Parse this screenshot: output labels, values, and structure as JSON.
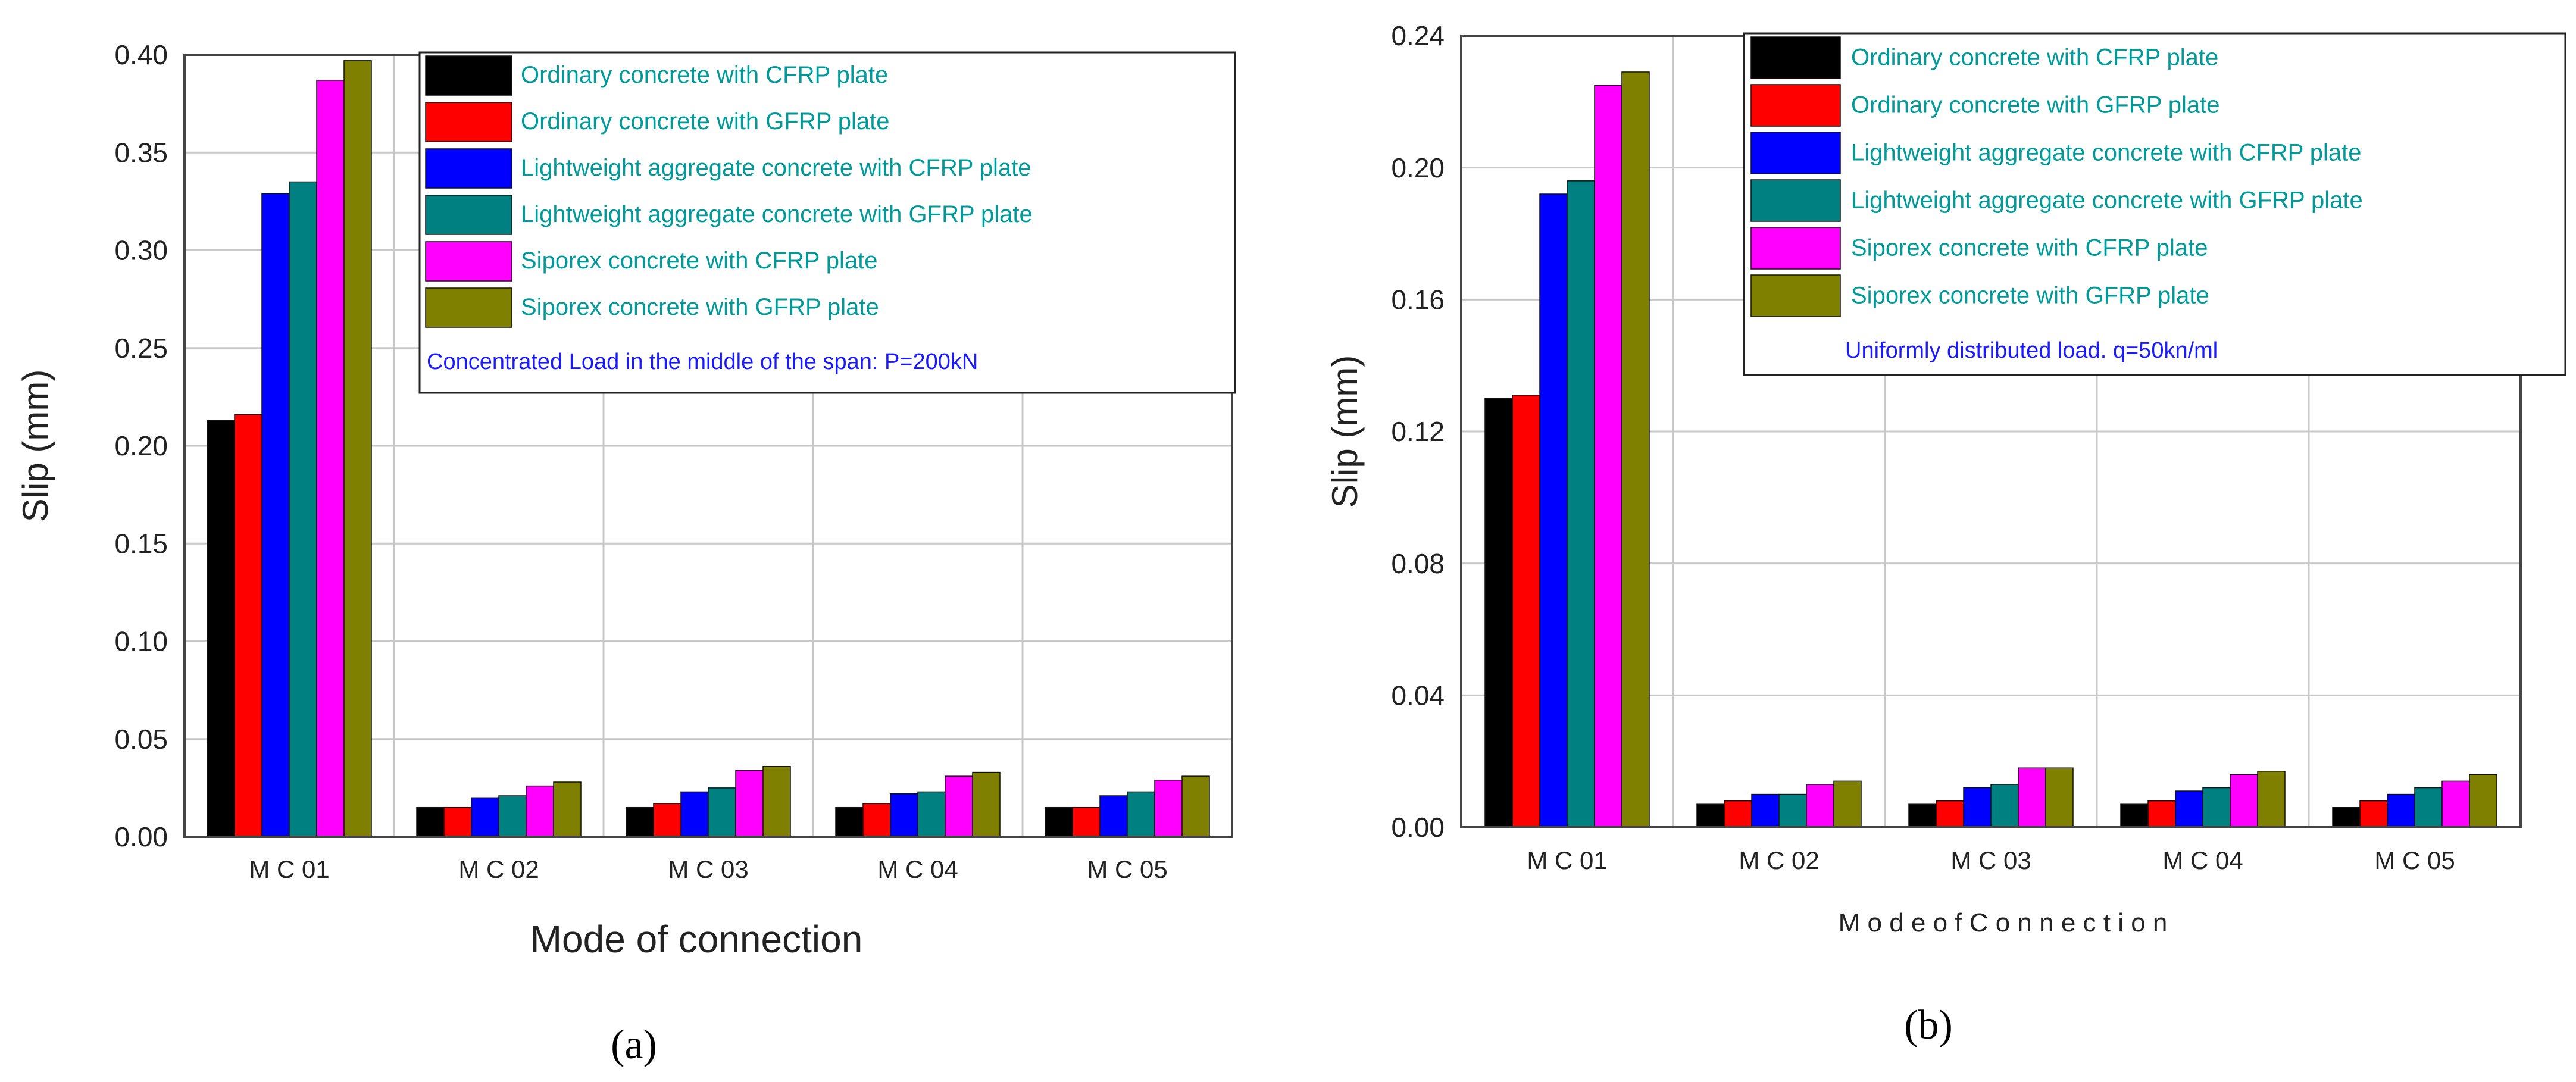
{
  "chart_data": [
    {
      "type": "bar",
      "panel_label": "(a)",
      "title": "",
      "xlabel": "Mode of connection",
      "ylabel": "Slip (mm)",
      "ylim": [
        0,
        0.4
      ],
      "yticks": [
        0.0,
        0.05,
        0.1,
        0.15,
        0.2,
        0.25,
        0.3,
        0.35,
        0.4
      ],
      "ytick_labels": [
        "0.00",
        "0.05",
        "0.10",
        "0.15",
        "0.20",
        "0.25",
        "0.30",
        "0.35",
        "0.40"
      ],
      "grid": true,
      "categories": [
        "M C 01",
        "M C 02",
        "M C 03",
        "M C 04",
        "M C 05"
      ],
      "legend_position": "top-right",
      "legend_note": "Concentrated Load in the middle of the span:  P=200kN",
      "series": [
        {
          "name": "Ordinary concrete with CFRP plate",
          "color": "#000000",
          "values": [
            0.213,
            0.015,
            0.015,
            0.015,
            0.015
          ]
        },
        {
          "name": "Ordinary concrete with GFRP plate",
          "color": "#ff0000",
          "values": [
            0.216,
            0.015,
            0.017,
            0.017,
            0.015
          ]
        },
        {
          "name": "Lightweight aggregate concrete with CFRP plate",
          "color": "#0000ff",
          "values": [
            0.329,
            0.02,
            0.023,
            0.022,
            0.021
          ]
        },
        {
          "name": "Lightweight aggregate concrete with GFRP plate",
          "color": "#008080",
          "values": [
            0.335,
            0.021,
            0.025,
            0.023,
            0.023
          ]
        },
        {
          "name": "Siporex concrete with CFRP plate",
          "color": "#ff00ff",
          "values": [
            0.387,
            0.026,
            0.034,
            0.031,
            0.029
          ]
        },
        {
          "name": "Siporex concrete with GFRP plate",
          "color": "#808000",
          "values": [
            0.397,
            0.028,
            0.036,
            0.033,
            0.031
          ]
        }
      ]
    },
    {
      "type": "bar",
      "panel_label": "(b)",
      "title": "",
      "xlabel": "M o d e  o f  C o n n e c t i o n",
      "ylabel": "Slip (mm)",
      "ylim": [
        0,
        0.24
      ],
      "yticks": [
        0.0,
        0.04,
        0.08,
        0.12,
        0.16,
        0.2,
        0.24
      ],
      "ytick_labels": [
        "0.00",
        "0.04",
        "0.08",
        "0.12",
        "0.16",
        "0.20",
        "0.24"
      ],
      "grid": true,
      "categories": [
        "M C 01",
        "M C 02",
        "M C 03",
        "M C 04",
        "M C 05"
      ],
      "legend_position": "top-right",
      "legend_note": "Uniformly distributed load.  q=50kn/ml",
      "series": [
        {
          "name": "Ordinary concrete with CFRP plate",
          "color": "#000000",
          "values": [
            0.13,
            0.007,
            0.007,
            0.007,
            0.006
          ]
        },
        {
          "name": "Ordinary concrete with GFRP plate",
          "color": "#ff0000",
          "values": [
            0.131,
            0.008,
            0.008,
            0.008,
            0.008
          ]
        },
        {
          "name": "Lightweight aggregate concrete with CFRP plate",
          "color": "#0000ff",
          "values": [
            0.192,
            0.01,
            0.012,
            0.011,
            0.01
          ]
        },
        {
          "name": "Lightweight aggregate concrete with GFRP plate",
          "color": "#008080",
          "values": [
            0.196,
            0.01,
            0.013,
            0.012,
            0.012
          ]
        },
        {
          "name": "Siporex concrete with CFRP plate",
          "color": "#ff00ff",
          "values": [
            0.225,
            0.013,
            0.018,
            0.016,
            0.014
          ]
        },
        {
          "name": "Siporex concrete with GFRP plate",
          "color": "#808000",
          "values": [
            0.229,
            0.014,
            0.018,
            0.017,
            0.016
          ]
        }
      ]
    }
  ],
  "colors": {
    "legend_text": "#009a9a",
    "legend_note": "#1a1aff",
    "grid": "#c8c8c8",
    "axis": "#444444"
  }
}
